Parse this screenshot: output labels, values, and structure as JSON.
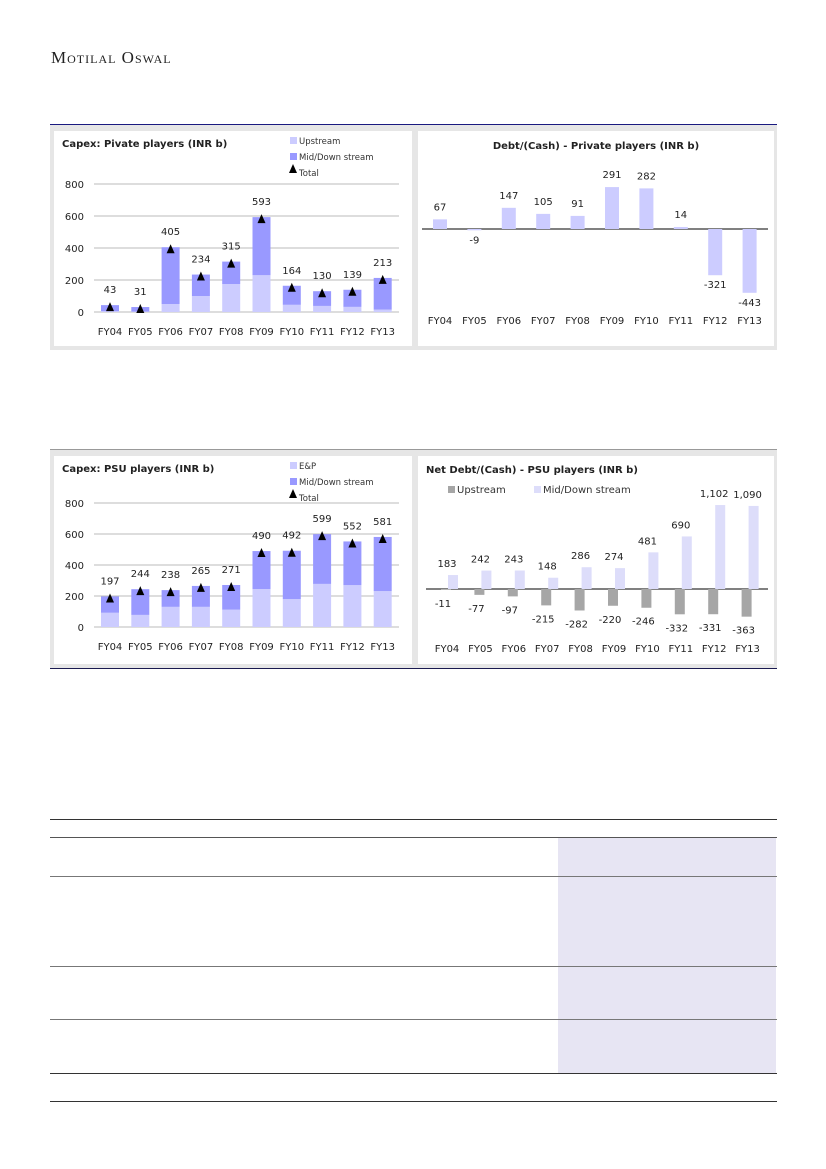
{
  "header": {
    "brand": "Motilal Oswal"
  },
  "chart_data": [
    {
      "type": "bar",
      "stacked": true,
      "title": "Capex: Pivate players (INR b)",
      "categories": [
        "FY04",
        "FY05",
        "FY06",
        "FY07",
        "FY08",
        "FY09",
        "FY10",
        "FY11",
        "FY12",
        "FY13"
      ],
      "series": [
        {
          "name": "Upstream",
          "color": "#ccccff",
          "values": [
            5,
            3,
            50,
            100,
            175,
            230,
            45,
            38,
            32,
            15
          ]
        },
        {
          "name": "Mid/Down stream",
          "color": "#9999ff",
          "values": [
            38,
            28,
            355,
            134,
            140,
            363,
            119,
            92,
            107,
            198
          ]
        }
      ],
      "totals": {
        "name": "Total",
        "values": [
          43,
          31,
          405,
          234,
          315,
          593,
          164,
          130,
          139,
          213
        ]
      },
      "yticks": [
        0,
        200,
        400,
        600,
        800
      ],
      "ylim": [
        0,
        800
      ],
      "grid": true,
      "legend": "top-right"
    },
    {
      "type": "bar",
      "title": "Debt/(Cash) - Private players (INR b)",
      "categories": [
        "FY04",
        "FY05",
        "FY06",
        "FY07",
        "FY08",
        "FY09",
        "FY10",
        "FY11",
        "FY12",
        "FY13"
      ],
      "series": [
        {
          "name": "Debt/(Cash)",
          "color": "#ccccff",
          "values": [
            67,
            -9,
            147,
            105,
            91,
            291,
            282,
            14,
            -321,
            -443
          ]
        }
      ],
      "ylim": [
        -443,
        291
      ],
      "grid": false
    },
    {
      "type": "bar",
      "stacked": true,
      "title": "Capex: PSU players (INR b)",
      "categories": [
        "FY04",
        "FY05",
        "FY06",
        "FY07",
        "FY08",
        "FY09",
        "FY10",
        "FY11",
        "FY12",
        "FY13"
      ],
      "series": [
        {
          "name": "E&P",
          "color": "#ccccff",
          "values": [
            92,
            78,
            130,
            130,
            112,
            245,
            180,
            278,
            270,
            232
          ]
        },
        {
          "name": "Mid/Down stream",
          "color": "#9999ff",
          "values": [
            105,
            166,
            108,
            135,
            159,
            245,
            312,
            321,
            282,
            349
          ]
        }
      ],
      "totals": {
        "name": "Total",
        "values": [
          197,
          244,
          238,
          265,
          271,
          490,
          492,
          599,
          552,
          581
        ]
      },
      "yticks": [
        0,
        200,
        400,
        600,
        800
      ],
      "ylim": [
        0,
        800
      ],
      "grid": true,
      "legend": "top-right"
    },
    {
      "type": "bar",
      "title": "Net Debt/(Cash) - PSU players (INR b)",
      "categories": [
        "FY04",
        "FY05",
        "FY06",
        "FY07",
        "FY08",
        "FY09",
        "FY10",
        "FY11",
        "FY12",
        "FY13"
      ],
      "series": [
        {
          "name": "Upstream",
          "color": "#a6a6a6",
          "values": [
            -11,
            -77,
            -97,
            -215,
            -282,
            -220,
            -246,
            -332,
            -331,
            -363
          ]
        },
        {
          "name": "Mid/Down stream",
          "color": "#ddddfa",
          "values": [
            183,
            242,
            243,
            148,
            286,
            274,
            481,
            690,
            1102,
            1090
          ],
          "labels": [
            "183",
            "242",
            "243",
            "148",
            "286",
            "274",
            "481",
            "690",
            "1,102",
            "1,090"
          ]
        }
      ],
      "ylim": [
        -363,
        1102
      ],
      "grid": false,
      "legend": "top-left"
    }
  ]
}
